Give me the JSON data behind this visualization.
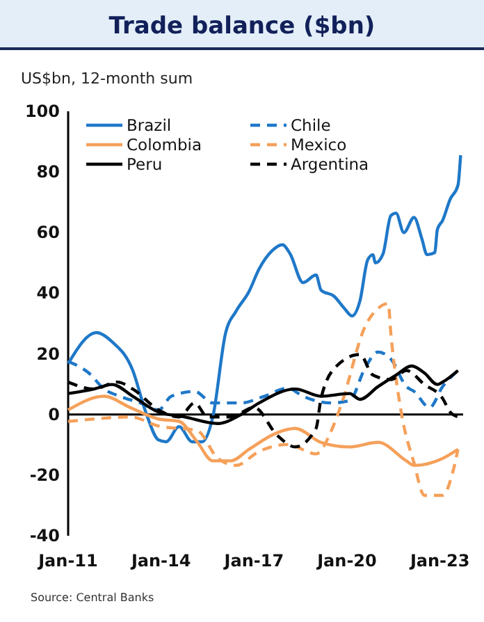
{
  "chart_data": {
    "type": "line",
    "title": "Trade balance ($bn)",
    "ylabel": "US$bn, 12-month sum",
    "annotations": [
      "Source: Central Banks"
    ],
    "xlim": [
      "2011-01",
      "2023-10"
    ],
    "xticks": [
      {
        "value": "2011-01",
        "label": "Jan-11"
      },
      {
        "value": "2014-01",
        "label": "Jan-14"
      },
      {
        "value": "2017-01",
        "label": "Jan-17"
      },
      {
        "value": "2020-01",
        "label": "Jan-20"
      },
      {
        "value": "2023-01",
        "label": "Jan-23"
      }
    ],
    "ylim": [
      -40,
      100
    ],
    "yticks": [
      -40,
      -20,
      0,
      20,
      40,
      60,
      80,
      100
    ],
    "ref_lines": [
      {
        "axis": "y",
        "value": 0,
        "color": "#000000"
      }
    ],
    "legend": "top",
    "series": [
      {
        "name": "Brazil",
        "color": "#1f78c8",
        "line_style": "solid",
        "x": [
          "2011-01",
          "2011-12",
          "2012-06",
          "2013-02",
          "2013-07",
          "2013-12",
          "2014-03",
          "2014-08",
          "2015-01",
          "2015-05",
          "2015-09",
          "2016-02",
          "2016-06",
          "2016-11",
          "2017-03",
          "2017-08",
          "2017-12",
          "2018-03",
          "2018-08",
          "2019-01",
          "2019-03",
          "2019-08",
          "2019-12",
          "2020-03",
          "2020-06",
          "2020-09",
          "2020-11",
          "2020-12",
          "2021-03",
          "2021-06",
          "2021-08",
          "2021-11",
          "2022-03",
          "2022-06",
          "2022-08",
          "2022-11",
          "2022-12",
          "2023-02",
          "2023-05",
          "2023-08",
          "2023-09"
        ],
        "values": [
          16.8,
          27,
          24,
          14.5,
          1,
          -8.4,
          -9,
          -4,
          -9,
          -9,
          -1,
          27,
          34,
          40.5,
          48,
          54,
          56,
          53,
          43.5,
          46,
          41,
          39,
          35,
          32.5,
          37.4,
          51,
          52.7,
          50,
          53,
          65.6,
          66.4,
          60,
          65,
          58,
          52.7,
          53.4,
          61,
          64,
          71,
          75.6,
          85.5
        ]
      },
      {
        "name": "Chile",
        "color": "#1f78c8",
        "line_style": "dashed",
        "x": [
          "2011-01",
          "2011-09",
          "2012-03",
          "2012-09",
          "2013-05",
          "2013-12",
          "2014-05",
          "2015-02",
          "2015-09",
          "2016-08",
          "2017-05",
          "2018-02",
          "2018-08",
          "2019-07",
          "2020-02",
          "2020-08",
          "2021-01",
          "2021-06",
          "2021-12",
          "2022-03",
          "2022-09",
          "2023-02",
          "2023-08"
        ],
        "values": [
          17.5,
          13.7,
          8.4,
          6,
          3.8,
          1.5,
          6,
          7.6,
          3.8,
          3.8,
          6,
          8.7,
          6,
          3.8,
          4.6,
          15.3,
          20.6,
          18.3,
          9.2,
          7.6,
          2.3,
          9.2,
          14.5
        ]
      },
      {
        "name": "Colombia",
        "color": "#f5a05a",
        "line_style": "solid",
        "x": [
          "2011-01",
          "2012-03",
          "2013-01",
          "2013-12",
          "2014-08",
          "2015-03",
          "2015-09",
          "2016-04",
          "2016-11",
          "2017-10",
          "2018-05",
          "2019-03",
          "2020-02",
          "2021-01",
          "2021-12",
          "2022-03",
          "2023-02",
          "2023-08"
        ],
        "values": [
          1.5,
          6,
          2.3,
          -1.5,
          -2.3,
          -9,
          -15.3,
          -15.3,
          -11.5,
          -6,
          -4.6,
          -9.2,
          -10.7,
          -9.2,
          -15.3,
          -16.8,
          -14.5,
          -11.5
        ]
      },
      {
        "name": "Mexico",
        "color": "#f5a05a",
        "line_style": "dashed",
        "x": [
          "2011-01",
          "2011-11",
          "2013-01",
          "2013-12",
          "2015-03",
          "2015-11",
          "2016-06",
          "2017-03",
          "2018-02",
          "2019-01",
          "2019-07",
          "2019-11",
          "2020-08",
          "2021-01",
          "2021-05",
          "2021-06",
          "2021-10",
          "2022-03",
          "2022-07",
          "2023-02",
          "2023-06",
          "2023-08"
        ],
        "values": [
          -2.3,
          -1.5,
          -0.8,
          -3.8,
          -5.3,
          -14.5,
          -16.8,
          -12.2,
          -9.9,
          -13,
          -5.3,
          3.8,
          29,
          35,
          36.6,
          26.7,
          0.8,
          -16,
          -26.7,
          -26.7,
          -19,
          -11.5
        ]
      },
      {
        "name": "Peru",
        "color": "#000000",
        "line_style": "solid",
        "x": [
          "2011-01",
          "2011-11",
          "2012-06",
          "2013-02",
          "2013-12",
          "2014-10",
          "2015-11",
          "2016-08",
          "2017-03",
          "2018-05",
          "2019-03",
          "2020-02",
          "2020-06",
          "2021-01",
          "2021-08",
          "2022-02",
          "2022-07",
          "2022-12",
          "2023-02",
          "2023-08"
        ],
        "values": [
          6.9,
          8.4,
          9.9,
          6,
          0.8,
          -0.8,
          -3,
          0,
          3.8,
          8.4,
          6,
          6.9,
          5,
          9.2,
          13,
          16,
          13.7,
          9.9,
          10.7,
          14.5
        ]
      },
      {
        "name": "Argentina",
        "color": "#000000",
        "line_style": "dashed",
        "x": [
          "2011-01",
          "2011-11",
          "2012-08",
          "2013-02",
          "2013-12",
          "2014-08",
          "2015-02",
          "2015-07",
          "2016-04",
          "2017-01",
          "2017-10",
          "2018-05",
          "2019-01",
          "2019-03",
          "2019-09",
          "2020-06",
          "2020-11",
          "2021-06",
          "2021-12",
          "2022-07",
          "2023-02",
          "2023-05",
          "2023-08"
        ],
        "values": [
          10.7,
          8.4,
          10.7,
          8.4,
          1.5,
          -0.8,
          3.8,
          -0.8,
          -0.8,
          2.3,
          -6.9,
          -10.7,
          -4.6,
          5.3,
          16,
          19.8,
          13,
          11.5,
          14.5,
          9.9,
          5.3,
          0.8,
          -0.8
        ]
      }
    ]
  }
}
